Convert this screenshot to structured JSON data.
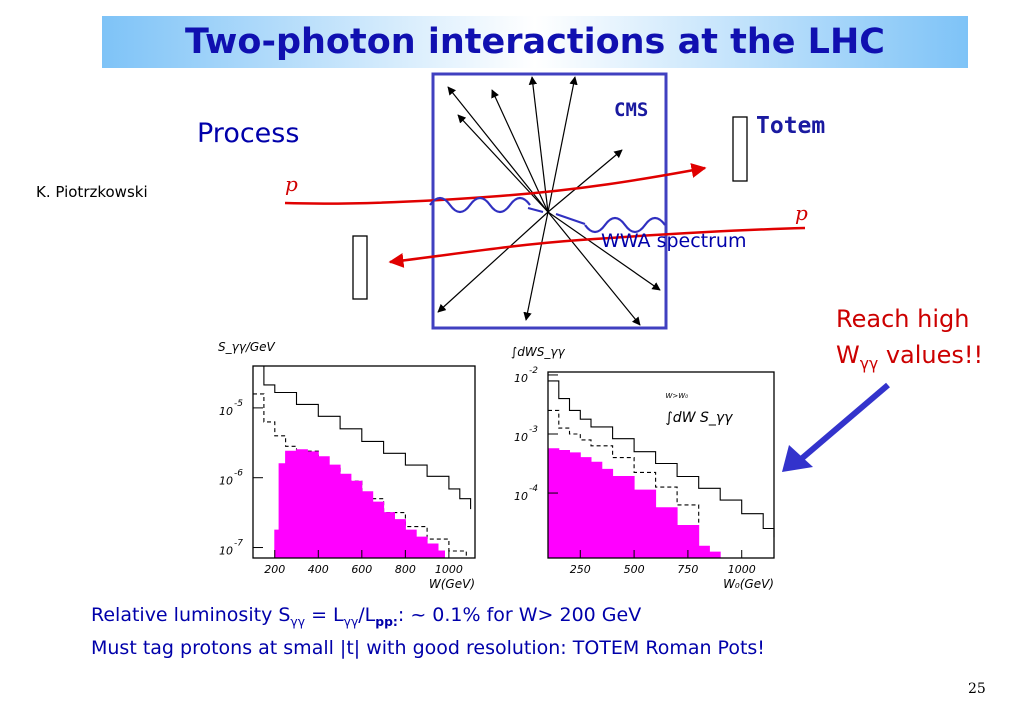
{
  "slide": {
    "title": "Two-photon interactions at the LHC",
    "page_number": "25"
  },
  "labels": {
    "process": "Process",
    "author": "K. Piotrzkowski",
    "cms": "CMS",
    "totem": "Totem",
    "p_upper": "p",
    "p_lower": "p",
    "wwa": "WWA spectrum"
  },
  "callout": {
    "line1": "Reach high",
    "w": "W",
    "gg": "γγ",
    "rest": " values!!"
  },
  "footer": {
    "l1_a": "Relative luminosity S",
    "l1_sub1": "γγ",
    "l1_b": " = L",
    "l1_sub2": "γγ",
    "l1_c": "/L",
    "l1_sub3": "pp:",
    "l1_d": ": ~ 0.1% for W> 200 GeV",
    "line2": "Must tag protons at small |t| with good resolution:  TOTEM Roman Pots!"
  },
  "colors": {
    "title": "#1010b0",
    "box": "#4040c0",
    "proton": "#e00000",
    "photon": "#3030c0",
    "fill": "#ff00ff",
    "callout": "#cc0000",
    "arrow": "#3333cc",
    "text": "#0000aa"
  },
  "chart_data": [
    {
      "type": "area",
      "ylabel": "S_γγ/GeV",
      "xlabel": "W(GeV)",
      "ylog": true,
      "xlim": [
        100,
        1120
      ],
      "ylim_exp": [
        -7.15,
        -4.4
      ],
      "xticks": [
        200,
        400,
        600,
        800,
        1000
      ],
      "xtick_labels": [
        "200",
        "400",
        "600",
        "800",
        "1000"
      ],
      "ytick_exps": [
        -5,
        -6,
        -7
      ],
      "ytick_labels": [
        "-5",
        "-6",
        "-7"
      ],
      "series": [
        {
          "style": "solid",
          "x": [
            100,
            150,
            200,
            300,
            400,
            500,
            600,
            700,
            800,
            900,
            1000,
            1050,
            1100
          ],
          "logy": [
            -4.4,
            -4.67,
            -4.78,
            -4.95,
            -5.12,
            -5.3,
            -5.48,
            -5.65,
            -5.82,
            -5.98,
            -6.16,
            -6.3,
            -6.45
          ]
        },
        {
          "style": "dashed",
          "x": [
            100,
            150,
            200,
            250,
            300,
            400,
            500,
            600,
            700,
            800,
            900,
            1000,
            1080
          ],
          "logy": [
            -4.8,
            -5.2,
            -5.4,
            -5.55,
            -5.62,
            -5.85,
            -6.05,
            -6.3,
            -6.5,
            -6.7,
            -6.88,
            -7.05,
            -7.15
          ]
        },
        {
          "style": "filled",
          "x": [
            200,
            220,
            250,
            300,
            350,
            400,
            450,
            500,
            550,
            600,
            650,
            700,
            750,
            800,
            850,
            900,
            950,
            980
          ],
          "logy": [
            -6.75,
            -5.8,
            -5.62,
            -5.6,
            -5.63,
            -5.7,
            -5.82,
            -5.95,
            -6.05,
            -6.2,
            -6.35,
            -6.5,
            -6.6,
            -6.75,
            -6.85,
            -6.95,
            -7.05,
            -7.15
          ]
        }
      ]
    },
    {
      "type": "area",
      "ylabel": "∫dWS_γγ",
      "xlabel": "W₀(GeV)",
      "ylog": true,
      "xlim": [
        100,
        1150
      ],
      "ylim_exp": [
        -5.1,
        -1.95
      ],
      "xticks": [
        250,
        500,
        750,
        1000
      ],
      "xtick_labels": [
        "250",
        "500",
        "750",
        "1000"
      ],
      "ytick_exps": [
        -2,
        -3,
        -4
      ],
      "ytick_labels": [
        "-2",
        "-3",
        "-4"
      ],
      "inset_label": "∫dW S_γγ",
      "inset_small": "W>W₀",
      "series": [
        {
          "style": "solid",
          "x": [
            100,
            150,
            200,
            250,
            300,
            400,
            500,
            600,
            700,
            800,
            900,
            1000,
            1100,
            1150
          ],
          "logy": [
            -2.1,
            -2.4,
            -2.6,
            -2.75,
            -2.88,
            -3.08,
            -3.3,
            -3.5,
            -3.72,
            -3.92,
            -4.12,
            -4.35,
            -4.6,
            -4.75
          ]
        },
        {
          "style": "dashed",
          "x": [
            100,
            150,
            200,
            250,
            300,
            400,
            500,
            600,
            700,
            800
          ],
          "logy": [
            -2.6,
            -2.9,
            -3.0,
            -3.1,
            -3.2,
            -3.4,
            -3.65,
            -3.9,
            -4.2,
            -4.5
          ]
        },
        {
          "style": "filled",
          "x": [
            100,
            150,
            200,
            250,
            300,
            350,
            400,
            500,
            600,
            700,
            800,
            850,
            900
          ],
          "logy": [
            -3.25,
            -3.28,
            -3.32,
            -3.4,
            -3.48,
            -3.6,
            -3.72,
            -3.95,
            -4.25,
            -4.55,
            -4.9,
            -5.0,
            -5.1
          ]
        }
      ]
    }
  ]
}
